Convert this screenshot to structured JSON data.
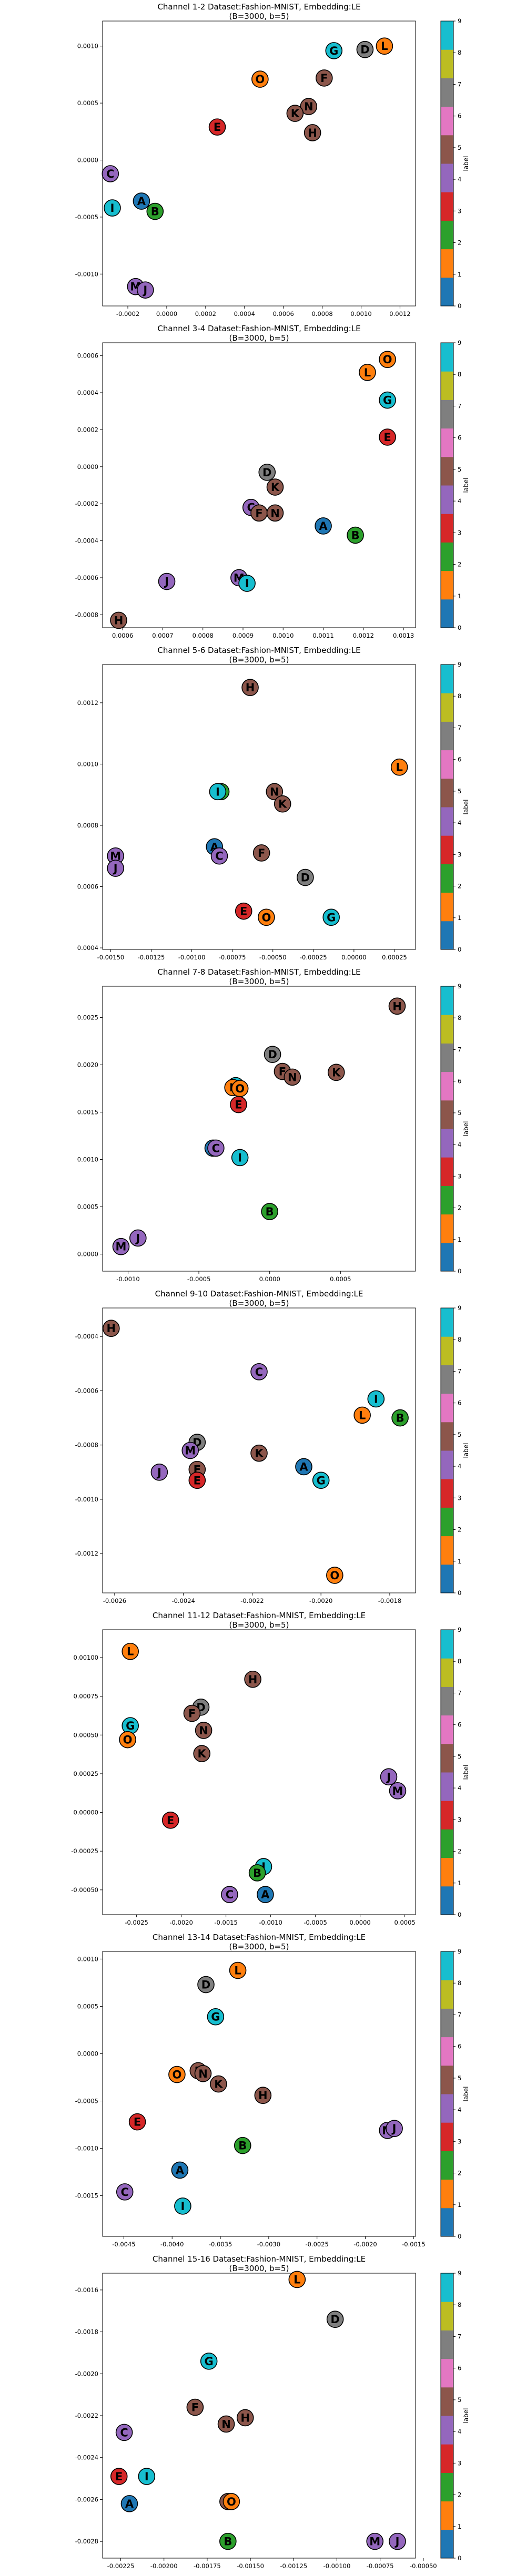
{
  "colorbar": {
    "label": "label",
    "ticks": [
      "0",
      "1",
      "2",
      "3",
      "4",
      "5",
      "6",
      "7",
      "8",
      "9"
    ],
    "colors": [
      "#1f77b4",
      "#ff7f0e",
      "#2ca02c",
      "#d62728",
      "#9467bd",
      "#8c564b",
      "#e377c2",
      "#7f7f7f",
      "#bcbd22",
      "#17becf"
    ]
  },
  "letter_class": {
    "A": 0,
    "L": 1,
    "O": 1,
    "B": 2,
    "E": 3,
    "C": 4,
    "J": 4,
    "M": 4,
    "F": 5,
    "H": 5,
    "K": 5,
    "N": 5,
    "D": 7,
    "G": 9,
    "I": 9
  },
  "chart_data": [
    {
      "type": "scatter",
      "title": "Channel 1-2 Dataset:Fashion-MNIST, Embedding:LE",
      "subtitle": "(B=3000, b=5)",
      "xlim": [
        -0.00033,
        0.00128
      ],
      "ylim": [
        -0.00128,
        0.00122
      ],
      "xticks": [
        "-0.0002",
        "0.0000",
        "0.0002",
        "0.0004",
        "0.0006",
        "0.0008",
        "0.0010",
        "0.0012"
      ],
      "xtick_values": [
        -0.0002,
        0,
        0.0002,
        0.0004,
        0.0006,
        0.0008,
        0.001,
        0.0012
      ],
      "yticks": [
        "-0.0010",
        "-0.0005",
        "0.0000",
        "0.0005",
        "0.0010"
      ],
      "ytick_values": [
        -0.001,
        -0.0005,
        0,
        0.0005,
        0.001
      ],
      "points": [
        {
          "letter": "L",
          "x": 0.00112,
          "y": 0.001
        },
        {
          "letter": "D",
          "x": 0.00102,
          "y": 0.00097
        },
        {
          "letter": "G",
          "x": 0.00086,
          "y": 0.00096
        },
        {
          "letter": "O",
          "x": 0.00048,
          "y": 0.00071
        },
        {
          "letter": "F",
          "x": 0.00081,
          "y": 0.00072
        },
        {
          "letter": "N",
          "x": 0.00073,
          "y": 0.00047
        },
        {
          "letter": "K",
          "x": 0.00066,
          "y": 0.00041
        },
        {
          "letter": "H",
          "x": 0.00075,
          "y": 0.00024
        },
        {
          "letter": "E",
          "x": 0.00026,
          "y": 0.00029
        },
        {
          "letter": "C",
          "x": -0.00029,
          "y": -0.00012
        },
        {
          "letter": "A",
          "x": -0.00013,
          "y": -0.00036
        },
        {
          "letter": "B",
          "x": -6e-05,
          "y": -0.00045
        },
        {
          "letter": "I",
          "x": -0.00028,
          "y": -0.00042
        },
        {
          "letter": "M",
          "x": -0.00016,
          "y": -0.00111
        },
        {
          "letter": "J",
          "x": -0.00011,
          "y": -0.00114
        }
      ]
    },
    {
      "type": "scatter",
      "title": "Channel 3-4 Dataset:Fashion-MNIST, Embedding:LE",
      "subtitle": "(B=3000, b=5)",
      "xlim": [
        0.00055,
        0.00133
      ],
      "ylim": [
        -0.00087,
        0.00067
      ],
      "xticks": [
        "0.0006",
        "0.0007",
        "0.0008",
        "0.0009",
        "0.0010",
        "0.0011",
        "0.0012",
        "0.0013"
      ],
      "xtick_values": [
        0.0006,
        0.0007,
        0.0008,
        0.0009,
        0.001,
        0.0011,
        0.0012,
        0.0013
      ],
      "yticks": [
        "-0.0008",
        "-0.0006",
        "-0.0004",
        "-0.0002",
        "0.0000",
        "0.0002",
        "0.0004",
        "0.0006"
      ],
      "ytick_values": [
        -0.0008,
        -0.0006,
        -0.0004,
        -0.0002,
        0,
        0.0002,
        0.0004,
        0.0006
      ],
      "points": [
        {
          "letter": "O",
          "x": 0.00126,
          "y": 0.00058
        },
        {
          "letter": "L",
          "x": 0.00121,
          "y": 0.00051
        },
        {
          "letter": "G",
          "x": 0.00126,
          "y": 0.00036
        },
        {
          "letter": "E",
          "x": 0.00126,
          "y": 0.00016
        },
        {
          "letter": "D",
          "x": 0.00096,
          "y": -3e-05
        },
        {
          "letter": "K",
          "x": 0.00098,
          "y": -0.00011
        },
        {
          "letter": "C",
          "x": 0.00092,
          "y": -0.00022
        },
        {
          "letter": "F",
          "x": 0.00094,
          "y": -0.00025
        },
        {
          "letter": "N",
          "x": 0.00098,
          "y": -0.00025
        },
        {
          "letter": "A",
          "x": 0.0011,
          "y": -0.00032
        },
        {
          "letter": "B",
          "x": 0.00118,
          "y": -0.00037
        },
        {
          "letter": "J",
          "x": 0.00071,
          "y": -0.00062
        },
        {
          "letter": "M",
          "x": 0.00089,
          "y": -0.0006
        },
        {
          "letter": "I",
          "x": 0.00091,
          "y": -0.00063
        },
        {
          "letter": "H",
          "x": 0.00059,
          "y": -0.00083
        }
      ]
    },
    {
      "type": "scatter",
      "title": "Channel 5-6 Dataset:Fashion-MNIST, Embedding:LE",
      "subtitle": "(B=3000, b=5)",
      "xlim": [
        -0.00155,
        0.00038
      ],
      "ylim": [
        0.000395,
        0.001325
      ],
      "xticks": [
        "-0.00150",
        "-0.00125",
        "-0.00100",
        "-0.00075",
        "-0.00050",
        "-0.00025",
        "0.00000",
        "0.00025"
      ],
      "xtick_values": [
        -0.0015,
        -0.00125,
        -0.001,
        -0.00075,
        -0.0005,
        -0.00025,
        0,
        0.00025
      ],
      "yticks": [
        "0.0004",
        "0.0006",
        "0.0008",
        "0.0010",
        "0.0012"
      ],
      "ytick_values": [
        0.0004,
        0.0006,
        0.0008,
        0.001,
        0.0012
      ],
      "points": [
        {
          "letter": "H",
          "x": -0.00064,
          "y": 0.00125
        },
        {
          "letter": "L",
          "x": 0.00028,
          "y": 0.00099
        },
        {
          "letter": "B",
          "x": -0.00082,
          "y": 0.00091
        },
        {
          "letter": "I",
          "x": -0.00084,
          "y": 0.00091
        },
        {
          "letter": "N",
          "x": -0.00049,
          "y": 0.00091
        },
        {
          "letter": "K",
          "x": -0.00044,
          "y": 0.00087
        },
        {
          "letter": "A",
          "x": -0.00086,
          "y": 0.00073
        },
        {
          "letter": "C",
          "x": -0.00083,
          "y": 0.0007
        },
        {
          "letter": "F",
          "x": -0.00057,
          "y": 0.00071
        },
        {
          "letter": "M",
          "x": -0.00147,
          "y": 0.0007
        },
        {
          "letter": "J",
          "x": -0.00147,
          "y": 0.00066
        },
        {
          "letter": "D",
          "x": -0.0003,
          "y": 0.00063
        },
        {
          "letter": "E",
          "x": -0.00068,
          "y": 0.00052
        },
        {
          "letter": "O",
          "x": -0.00054,
          "y": 0.0005
        },
        {
          "letter": "G",
          "x": -0.00014,
          "y": 0.0005
        }
      ]
    },
    {
      "type": "scatter",
      "title": "Channel 7-8 Dataset:Fashion-MNIST, Embedding:LE",
      "subtitle": "(B=3000, b=5)",
      "xlim": [
        -0.00118,
        0.00103
      ],
      "ylim": [
        -0.00018,
        0.00283
      ],
      "xticks": [
        "-0.0010",
        "-0.0005",
        "0.0000",
        "0.0005"
      ],
      "xtick_values": [
        -0.001,
        -0.0005,
        0,
        0.0005
      ],
      "yticks": [
        "0.0000",
        "0.0005",
        "0.0010",
        "0.0015",
        "0.0020",
        "0.0025"
      ],
      "ytick_values": [
        0,
        0.0005,
        0.001,
        0.0015,
        0.002,
        0.0025
      ],
      "points": [
        {
          "letter": "H",
          "x": 0.0009,
          "y": 0.00262
        },
        {
          "letter": "D",
          "x": 2e-05,
          "y": 0.00211
        },
        {
          "letter": "F",
          "x": 9e-05,
          "y": 0.00193
        },
        {
          "letter": "N",
          "x": 0.00016,
          "y": 0.00187
        },
        {
          "letter": "K",
          "x": 0.00047,
          "y": 0.00192
        },
        {
          "letter": "G",
          "x": -0.00024,
          "y": 0.00178
        },
        {
          "letter": "L",
          "x": -0.00026,
          "y": 0.00176
        },
        {
          "letter": "O",
          "x": -0.00021,
          "y": 0.00175
        },
        {
          "letter": "E",
          "x": -0.00022,
          "y": 0.00158
        },
        {
          "letter": "A",
          "x": -0.0004,
          "y": 0.00112
        },
        {
          "letter": "C",
          "x": -0.00038,
          "y": 0.00112
        },
        {
          "letter": "I",
          "x": -0.00021,
          "y": 0.00102
        },
        {
          "letter": "B",
          "x": 0,
          "y": 0.00045
        },
        {
          "letter": "J",
          "x": -0.00093,
          "y": 0.00017
        },
        {
          "letter": "M",
          "x": -0.00105,
          "y": 8e-05
        }
      ]
    },
    {
      "type": "scatter",
      "title": "Channel 9-10 Dataset:Fashion-MNIST, Embedding:LE",
      "subtitle": "(B=3000, b=5)",
      "xlim": [
        -0.002635,
        -0.001725
      ],
      "ylim": [
        -0.001345,
        -0.000295
      ],
      "xticks": [
        "-0.0026",
        "-0.0024",
        "-0.0022",
        "-0.0020",
        "-0.0018"
      ],
      "xtick_values": [
        -0.0026,
        -0.0024,
        -0.0022,
        -0.002,
        -0.0018
      ],
      "yticks": [
        "-0.0012",
        "-0.0010",
        "-0.0008",
        "-0.0006",
        "-0.0004"
      ],
      "ytick_values": [
        -0.0012,
        -0.001,
        -0.0008,
        -0.0006,
        -0.0004
      ],
      "points": [
        {
          "letter": "H",
          "x": -0.00261,
          "y": -0.00037
        },
        {
          "letter": "C",
          "x": -0.00218,
          "y": -0.00053
        },
        {
          "letter": "I",
          "x": -0.00184,
          "y": -0.00063
        },
        {
          "letter": "L",
          "x": -0.00188,
          "y": -0.00069
        },
        {
          "letter": "B",
          "x": -0.00177,
          "y": -0.0007
        },
        {
          "letter": "D",
          "x": -0.00236,
          "y": -0.00079
        },
        {
          "letter": "M",
          "x": -0.00238,
          "y": -0.00082
        },
        {
          "letter": "K",
          "x": -0.00218,
          "y": -0.00083
        },
        {
          "letter": "A",
          "x": -0.00205,
          "y": -0.00088
        },
        {
          "letter": "G",
          "x": -0.002,
          "y": -0.00093
        },
        {
          "letter": "F",
          "x": -0.00236,
          "y": -0.00089
        },
        {
          "letter": "E",
          "x": -0.00236,
          "y": -0.00093
        },
        {
          "letter": "J",
          "x": -0.00247,
          "y": -0.0009
        },
        {
          "letter": "O",
          "x": -0.00196,
          "y": -0.00128
        }
      ]
    },
    {
      "type": "scatter",
      "title": "Channel 11-12 Dataset:Fashion-MNIST, Embedding:LE",
      "subtitle": "(B=3000, b=5)",
      "xlim": [
        -0.00288,
        0.00062
      ],
      "ylim": [
        -0.00066,
        0.00118
      ],
      "xticks": [
        "-0.0025",
        "-0.0020",
        "-0.0015",
        "-0.0010",
        "-0.0005",
        "0.0000",
        "0.0005"
      ],
      "xtick_values": [
        -0.0025,
        -0.002,
        -0.0015,
        -0.001,
        -0.0005,
        0,
        0.0005
      ],
      "yticks": [
        "-0.00050",
        "-0.00025",
        "0.00000",
        "0.00025",
        "0.00050",
        "0.00075",
        "0.00100"
      ],
      "ytick_values": [
        -0.0005,
        -0.00025,
        0,
        0.00025,
        0.0005,
        0.00075,
        0.001
      ],
      "points": [
        {
          "letter": "L",
          "x": -0.00257,
          "y": 0.00104
        },
        {
          "letter": "H",
          "x": -0.0012,
          "y": 0.00086
        },
        {
          "letter": "D",
          "x": -0.00178,
          "y": 0.00068
        },
        {
          "letter": "F",
          "x": -0.00188,
          "y": 0.00064
        },
        {
          "letter": "G",
          "x": -0.00257,
          "y": 0.00056
        },
        {
          "letter": "O",
          "x": -0.0026,
          "y": 0.00047
        },
        {
          "letter": "N",
          "x": -0.00175,
          "y": 0.00053
        },
        {
          "letter": "K",
          "x": -0.00177,
          "y": 0.00038
        },
        {
          "letter": "J",
          "x": 0.00032,
          "y": 0.00023
        },
        {
          "letter": "M",
          "x": 0.00042,
          "y": 0.00014
        },
        {
          "letter": "E",
          "x": -0.00212,
          "y": -5e-05
        },
        {
          "letter": "I",
          "x": -0.00108,
          "y": -0.00035
        },
        {
          "letter": "B",
          "x": -0.00115,
          "y": -0.00039
        },
        {
          "letter": "C",
          "x": -0.00146,
          "y": -0.00053
        },
        {
          "letter": "A",
          "x": -0.00106,
          "y": -0.00053
        }
      ]
    },
    {
      "type": "scatter",
      "title": "Channel 13-14 Dataset:Fashion-MNIST, Embedding:LE",
      "subtitle": "(B=3000, b=5)",
      "xlim": [
        -0.00472,
        -0.00148
      ],
      "ylim": [
        -0.00193,
        0.00108
      ],
      "xticks": [
        "-0.0045",
        "-0.0040",
        "-0.0035",
        "-0.0030",
        "-0.0025",
        "-0.0020",
        "-0.0015"
      ],
      "xtick_values": [
        -0.0045,
        -0.004,
        -0.0035,
        -0.003,
        -0.0025,
        -0.002,
        -0.0015
      ],
      "yticks": [
        "-0.0015",
        "-0.0010",
        "-0.0005",
        "0.0000",
        "0.0005",
        "0.0010"
      ],
      "ytick_values": [
        -0.0015,
        -0.001,
        -0.0005,
        0,
        0.0005,
        0.001
      ],
      "points": [
        {
          "letter": "L",
          "x": -0.00332,
          "y": 0.00088
        },
        {
          "letter": "D",
          "x": -0.00365,
          "y": 0.00073
        },
        {
          "letter": "G",
          "x": -0.00355,
          "y": 0.00039
        },
        {
          "letter": "O",
          "x": -0.00395,
          "y": -0.00022
        },
        {
          "letter": "F",
          "x": -0.00373,
          "y": -0.00018
        },
        {
          "letter": "N",
          "x": -0.00368,
          "y": -0.00021
        },
        {
          "letter": "K",
          "x": -0.00352,
          "y": -0.00032
        },
        {
          "letter": "H",
          "x": -0.00306,
          "y": -0.00044
        },
        {
          "letter": "E",
          "x": -0.00436,
          "y": -0.00072
        },
        {
          "letter": "M",
          "x": -0.00177,
          "y": -0.00081
        },
        {
          "letter": "J",
          "x": -0.0017,
          "y": -0.00079
        },
        {
          "letter": "B",
          "x": -0.00327,
          "y": -0.00097
        },
        {
          "letter": "A",
          "x": -0.00392,
          "y": -0.00123
        },
        {
          "letter": "C",
          "x": -0.00449,
          "y": -0.00146
        },
        {
          "letter": "I",
          "x": -0.00389,
          "y": -0.00161
        }
      ]
    },
    {
      "type": "scatter",
      "title": "Channel 15-16 Dataset:Fashion-MNIST, Embedding:LE",
      "subtitle": "(B=3000, b=5)",
      "xlim": [
        -0.002355,
        -0.000545
      ],
      "ylim": [
        -0.00288,
        -0.00152
      ],
      "xticks": [
        "-0.00225",
        "-0.00200",
        "-0.00175",
        "-0.00150",
        "-0.00125",
        "-0.00100",
        "-0.00075",
        "-0.00050"
      ],
      "xtick_values": [
        -0.00225,
        -0.002,
        -0.00175,
        -0.0015,
        -0.00125,
        -0.001,
        -0.00075,
        -0.0005
      ],
      "yticks": [
        "-0.0028",
        "-0.0026",
        "-0.0024",
        "-0.0022",
        "-0.0020",
        "-0.0018",
        "-0.0016"
      ],
      "ytick_values": [
        -0.0028,
        -0.0026,
        -0.0024,
        -0.0022,
        -0.002,
        -0.0018,
        -0.0016
      ],
      "points": [
        {
          "letter": "L",
          "x": -0.00123,
          "y": -0.00155
        },
        {
          "letter": "D",
          "x": -0.00101,
          "y": -0.00174
        },
        {
          "letter": "G",
          "x": -0.00174,
          "y": -0.00194
        },
        {
          "letter": "F",
          "x": -0.00182,
          "y": -0.00216
        },
        {
          "letter": "H",
          "x": -0.00153,
          "y": -0.00221
        },
        {
          "letter": "N",
          "x": -0.00164,
          "y": -0.00224
        },
        {
          "letter": "C",
          "x": -0.00223,
          "y": -0.00228
        },
        {
          "letter": "E",
          "x": -0.00226,
          "y": -0.00249
        },
        {
          "letter": "I",
          "x": -0.0021,
          "y": -0.00249
        },
        {
          "letter": "A",
          "x": -0.0022,
          "y": -0.00262
        },
        {
          "letter": "K",
          "x": -0.00163,
          "y": -0.00261
        },
        {
          "letter": "O",
          "x": -0.00161,
          "y": -0.00261
        },
        {
          "letter": "B",
          "x": -0.00163,
          "y": -0.0028
        },
        {
          "letter": "M",
          "x": -0.00078,
          "y": -0.0028
        },
        {
          "letter": "J",
          "x": -0.00065,
          "y": -0.0028
        }
      ]
    }
  ]
}
